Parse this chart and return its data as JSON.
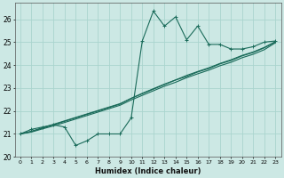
{
  "xlabel": "Humidex (Indice chaleur)",
  "ylabel": "",
  "xlim": [
    -0.5,
    23.5
  ],
  "ylim": [
    20.0,
    26.7
  ],
  "xticks": [
    0,
    1,
    2,
    3,
    4,
    5,
    6,
    7,
    8,
    9,
    10,
    11,
    12,
    13,
    14,
    15,
    16,
    17,
    18,
    19,
    20,
    21,
    22,
    23
  ],
  "yticks": [
    20,
    21,
    22,
    23,
    24,
    25,
    26
  ],
  "bg_color": "#cce8e4",
  "grid_color": "#aad4ce",
  "line_color": "#1a6b5a",
  "line1_x": [
    0,
    1,
    2,
    3,
    4,
    5,
    6,
    7,
    8,
    9,
    10,
    11,
    12,
    13,
    14,
    15,
    16,
    17,
    18,
    19,
    20,
    21,
    22,
    23
  ],
  "line1_y": [
    21.0,
    21.2,
    21.3,
    21.4,
    21.3,
    20.5,
    20.7,
    21.0,
    21.0,
    21.0,
    21.7,
    25.05,
    26.35,
    25.7,
    26.1,
    25.1,
    25.7,
    24.9,
    24.9,
    24.7,
    24.7,
    24.8,
    25.0,
    25.05
  ],
  "line2_x": [
    0,
    1,
    2,
    3,
    4,
    5,
    6,
    7,
    8,
    9,
    10,
    11,
    12,
    13,
    14,
    15,
    16,
    17,
    18,
    19,
    20,
    21,
    22,
    23
  ],
  "line2_y": [
    21.0,
    21.1,
    21.25,
    21.4,
    21.55,
    21.7,
    21.85,
    22.0,
    22.15,
    22.3,
    22.55,
    22.75,
    22.95,
    23.15,
    23.35,
    23.5,
    23.7,
    23.85,
    24.05,
    24.2,
    24.4,
    24.55,
    24.75,
    25.0
  ],
  "line3_x": [
    0,
    1,
    2,
    3,
    4,
    5,
    6,
    7,
    8,
    9,
    10,
    11,
    12,
    13,
    14,
    15,
    16,
    17,
    18,
    19,
    20,
    21,
    22,
    23
  ],
  "line3_y": [
    21.0,
    21.12,
    21.27,
    21.42,
    21.57,
    21.72,
    21.87,
    22.02,
    22.17,
    22.32,
    22.55,
    22.77,
    22.97,
    23.17,
    23.35,
    23.55,
    23.72,
    23.88,
    24.07,
    24.23,
    24.42,
    24.57,
    24.77,
    25.02
  ],
  "line4_x": [
    0,
    1,
    2,
    3,
    4,
    5,
    6,
    7,
    8,
    9,
    10,
    11,
    12,
    13,
    14,
    15,
    16,
    17,
    18,
    19,
    20,
    21,
    22,
    23
  ],
  "line4_y": [
    21.0,
    21.08,
    21.22,
    21.35,
    21.5,
    21.65,
    21.8,
    21.95,
    22.1,
    22.25,
    22.48,
    22.68,
    22.88,
    23.08,
    23.25,
    23.45,
    23.62,
    23.78,
    23.97,
    24.12,
    24.32,
    24.47,
    24.67,
    24.97
  ]
}
